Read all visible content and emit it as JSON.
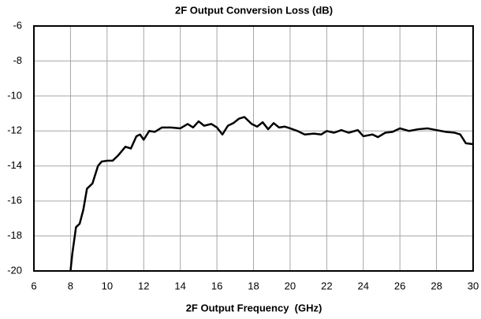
{
  "chart_data": {
    "type": "line",
    "title": "2F Output Conversion Loss (dB)",
    "x_label": "2F Output Frequency  (GHz)",
    "xlim": [
      6,
      30
    ],
    "xticks": [
      6,
      8,
      10,
      12,
      14,
      16,
      18,
      20,
      22,
      24,
      26,
      28,
      30
    ],
    "ylim": [
      -20,
      -6
    ],
    "yticks": [
      -20,
      -18,
      -16,
      -14,
      -12,
      -10,
      -8,
      -6
    ],
    "grid": true,
    "series": [
      {
        "color": "#000000",
        "x": [
          8.0,
          8.1,
          8.3,
          8.5,
          8.7,
          8.9,
          9.2,
          9.5,
          9.7,
          10.0,
          10.3,
          10.6,
          11.0,
          11.3,
          11.6,
          11.8,
          12.0,
          12.3,
          12.6,
          13.0,
          13.5,
          14.0,
          14.4,
          14.7,
          15.0,
          15.3,
          15.7,
          16.0,
          16.3,
          16.6,
          16.9,
          17.2,
          17.5,
          17.9,
          18.2,
          18.5,
          18.8,
          19.1,
          19.4,
          19.7,
          20.0,
          20.4,
          20.8,
          21.3,
          21.7,
          22.0,
          22.4,
          22.8,
          23.2,
          23.7,
          24.0,
          24.5,
          24.8,
          25.2,
          25.6,
          26.0,
          26.5,
          27.0,
          27.5,
          28.0,
          28.5,
          29.0,
          29.3,
          29.6,
          30.0
        ],
        "values": [
          -20,
          -19,
          -17.5,
          -17.3,
          -16.5,
          -15.3,
          -15.0,
          -14.0,
          -13.75,
          -13.7,
          -13.7,
          -13.4,
          -12.9,
          -13.0,
          -12.3,
          -12.2,
          -12.5,
          -12.0,
          -12.05,
          -11.8,
          -11.8,
          -11.85,
          -11.6,
          -11.8,
          -11.45,
          -11.7,
          -11.6,
          -11.8,
          -12.2,
          -11.7,
          -11.55,
          -11.3,
          -11.2,
          -11.6,
          -11.75,
          -11.5,
          -11.9,
          -11.55,
          -11.8,
          -11.75,
          -11.85,
          -12.0,
          -12.2,
          -12.15,
          -12.2,
          -12.0,
          -12.1,
          -11.95,
          -12.1,
          -11.95,
          -12.3,
          -12.2,
          -12.35,
          -12.1,
          -12.05,
          -11.85,
          -12.0,
          -11.9,
          -11.85,
          -11.95,
          -12.05,
          -12.1,
          -12.2,
          -12.7,
          -12.75
        ]
      }
    ]
  }
}
